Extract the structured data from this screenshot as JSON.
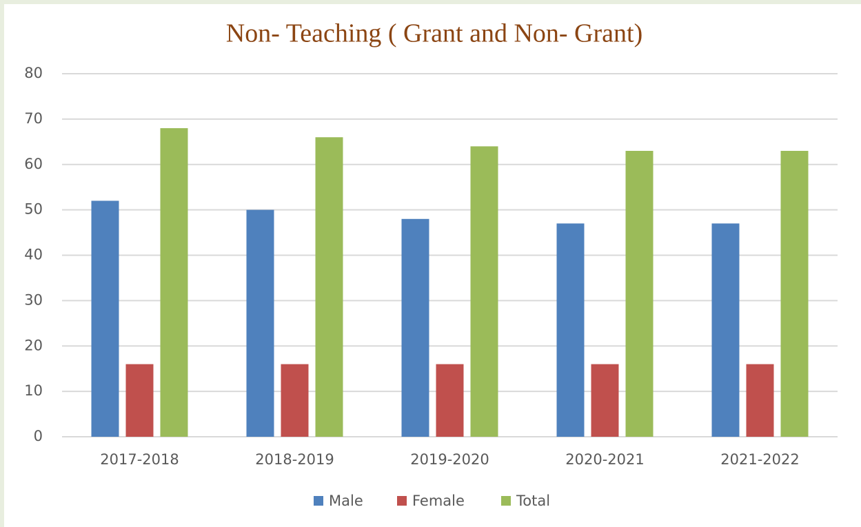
{
  "chart_data": {
    "type": "bar",
    "title": "Non- Teaching ( Grant and Non- Grant)",
    "categories": [
      "2017-2018",
      "2018-2019",
      "2019-2020",
      "2020-2021",
      "2021-2022"
    ],
    "series": [
      {
        "name": "Male",
        "color": "#4f81bd",
        "values": [
          52,
          50,
          48,
          47,
          47
        ]
      },
      {
        "name": "Female",
        "color": "#c0504d",
        "values": [
          16,
          16,
          16,
          16,
          16
        ]
      },
      {
        "name": "Total",
        "color": "#9bbb59",
        "values": [
          68,
          66,
          64,
          63,
          63
        ]
      }
    ],
    "ylim": [
      0,
      80
    ],
    "yticks": [
      0,
      10,
      20,
      30,
      40,
      50,
      60,
      70,
      80
    ],
    "grid": true,
    "legend": "bottom"
  }
}
